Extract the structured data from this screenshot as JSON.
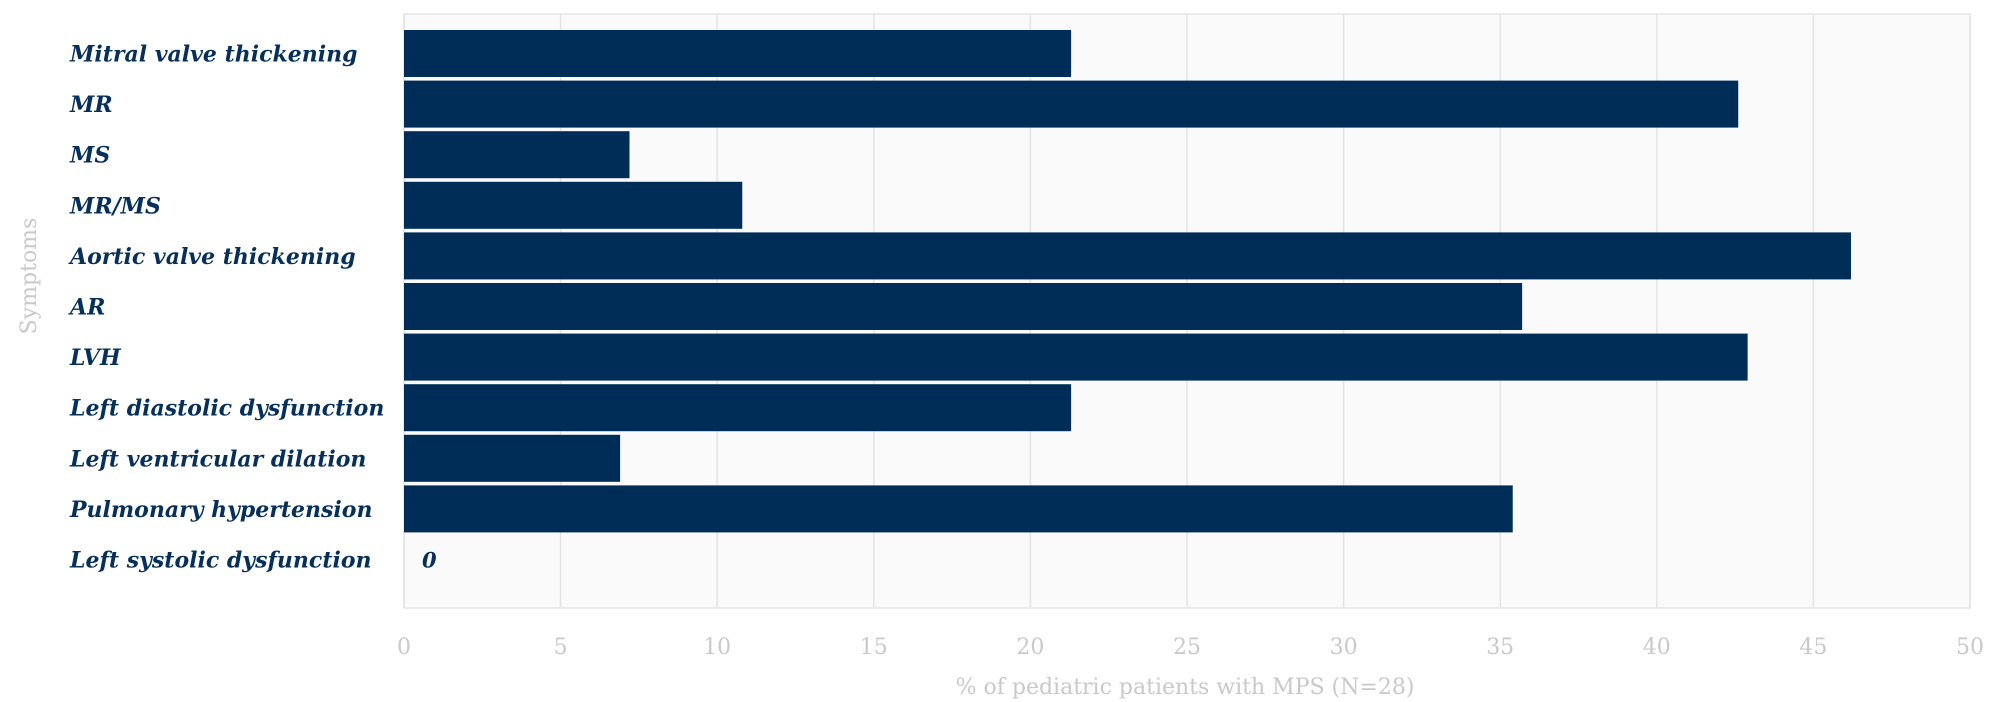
{
  "chart_data": {
    "type": "bar",
    "orientation": "horizontal",
    "categories": [
      "Mitral valve thickening",
      "MR",
      "MS",
      "MR/MS",
      "Aortic valve thickening",
      "AR",
      "LVH",
      "Left diastolic dysfunction",
      "Left ventricular dilation",
      "Pulmonary hypertension",
      "Left systolic dysfunction"
    ],
    "values": [
      21.3,
      42.6,
      7.2,
      10.8,
      46.2,
      35.7,
      42.9,
      21.3,
      6.9,
      35.4,
      0
    ],
    "data_labels": {
      "Left systolic dysfunction": "0"
    },
    "xlabel": "% of pediatric patients with MPS (N=28)",
    "ylabel": "Symptoms",
    "xlim": [
      0,
      50
    ],
    "xticks": [
      "0",
      "5",
      "10",
      "15",
      "20",
      "25",
      "30",
      "35",
      "40",
      "45",
      "50"
    ],
    "grid": true,
    "colors": {
      "bar": "#002d57",
      "plot_bg": "#fafafa",
      "grid": "#e4e4e4",
      "label": "#06305a",
      "axis_text": "#c9c9c9"
    }
  }
}
